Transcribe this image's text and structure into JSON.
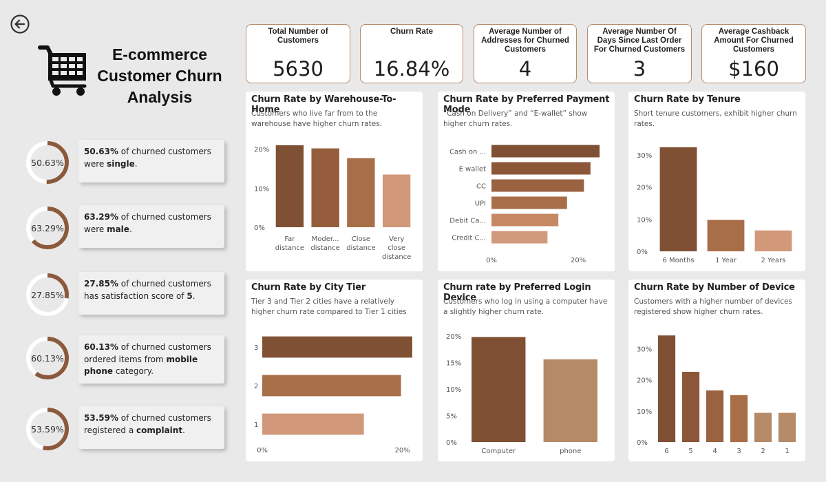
{
  "header": {
    "title_line1": "E-commerce",
    "title_line2": "Customer Churn",
    "title_line3": "Analysis",
    "back_icon": "arrow-left-circle-icon",
    "logo_icon": "shopping-cart-icon"
  },
  "kpis": [
    {
      "label": "Total Number of Customers",
      "value": "5630"
    },
    {
      "label": "Churn Rate",
      "value": "16.84%"
    },
    {
      "label": "Average Number of Addresses for Churned Customers",
      "value": "4"
    },
    {
      "label": "Average Number Of Days Since Last Order For Churned Customers",
      "value": "3"
    },
    {
      "label": "Average Cashback Amount For Churned Customers",
      "value": "$160"
    }
  ],
  "stats": [
    {
      "ring": "50.63%",
      "pct": 50.63,
      "lead": "50.63%",
      "text": " of churned customers were ",
      "bold": "single",
      "tail": "."
    },
    {
      "ring": "63.29%",
      "pct": 63.29,
      "lead": "63.29%",
      "text": " of churned customers were ",
      "bold": "male",
      "tail": "."
    },
    {
      "ring": "27.85%",
      "pct": 27.85,
      "lead": "27.85%",
      "text": " of churned customers has satisfaction score of ",
      "bold": "5",
      "tail": "."
    },
    {
      "ring": "60.13%",
      "pct": 60.13,
      "lead": "60.13%",
      "text": " of churned customers ordered items from ",
      "bold": "mobile phone",
      "tail": " category."
    },
    {
      "ring": "53.59%",
      "pct": 53.59,
      "lead": "53.59%",
      "text": " of churned customers registered a ",
      "bold": "complaint",
      "tail": "."
    }
  ],
  "colors": {
    "ring": "#8b5a3c",
    "ring_track": "#ffffff",
    "dark": "#7f5034",
    "mid": "#9a6240",
    "light": "#d29a7c"
  },
  "chart_data": [
    {
      "id": "warehouse",
      "type": "bar",
      "orientation": "vertical",
      "title": "Churn Rate by Warehouse-To-Home",
      "subtitle": "Customers who live far from to the warehouse have higher churn rates.",
      "categories": [
        "Far distance",
        "Moder... distance",
        "Close distance",
        "Very close distance"
      ],
      "values": [
        21,
        20.2,
        17.7,
        13.5
      ],
      "ticks": [
        "0%",
        "10%",
        "20%"
      ],
      "tick_values": [
        0,
        10,
        20
      ],
      "ylim": [
        0,
        21
      ],
      "colors": [
        "#7f5034",
        "#955d3d",
        "#a86e48",
        "#d2987a"
      ]
    },
    {
      "id": "payment",
      "type": "bar",
      "orientation": "horizontal",
      "title": "Churn Rate by Preferred Payment Mode",
      "subtitle": "“Cash on Delivery” and “E-wallet” show higher churn rates.",
      "categories": [
        "Cash on ...",
        "E wallet",
        "CC",
        "UPI",
        "Debit Ca...",
        "Credit C..."
      ],
      "values": [
        24.9,
        22.8,
        21.3,
        17.4,
        15.4,
        12.9
      ],
      "ticks": [
        "0%",
        "20%"
      ],
      "tick_values": [
        0,
        20
      ],
      "xlim": [
        0,
        26
      ],
      "colors": [
        "#7f5034",
        "#8c5638",
        "#9a6240",
        "#a86e48",
        "#c58863",
        "#d29a7c"
      ]
    },
    {
      "id": "tenure",
      "type": "bar",
      "orientation": "vertical",
      "title": "Churn Rate by Tenure",
      "subtitle": "Short tenure customers, exhibit higher churn rates.",
      "categories": [
        "6 Months",
        "1 Year",
        "2 Years"
      ],
      "values": [
        32.4,
        9.8,
        6.5
      ],
      "ticks": [
        "0%",
        "10%",
        "20%",
        "30%"
      ],
      "tick_values": [
        0,
        10,
        20,
        30
      ],
      "ylim": [
        0,
        33
      ],
      "colors": [
        "#7f5034",
        "#a86e48",
        "#d2987a"
      ]
    },
    {
      "id": "city",
      "type": "bar",
      "orientation": "horizontal",
      "title": "Churn Rate by City Tier",
      "subtitle": "Tier 3 and Tier 2 cities have a relatively higher churn rate compared to Tier 1 cities",
      "categories": [
        "3",
        "2",
        "1"
      ],
      "values": [
        21.4,
        19.8,
        14.5
      ],
      "ticks": [
        "0%",
        "20%"
      ],
      "tick_values": [
        0,
        20
      ],
      "xlim": [
        0,
        22
      ],
      "colors": [
        "#7f5034",
        "#a86e48",
        "#d2987a"
      ]
    },
    {
      "id": "login",
      "type": "bar",
      "orientation": "vertical",
      "title": "Churn rate by Preferred Login Device",
      "subtitle": "Customers who log in using a computer have a slightly higher churn rate.",
      "categories": [
        "Computer",
        "phone"
      ],
      "values": [
        19.8,
        15.6
      ],
      "ticks": [
        "0%",
        "5%",
        "10%",
        "15%",
        "20%"
      ],
      "tick_values": [
        0,
        5,
        10,
        15,
        20
      ],
      "ylim": [
        0,
        20.5
      ],
      "colors": [
        "#7f5034",
        "#b58a68"
      ]
    },
    {
      "id": "devices",
      "type": "bar",
      "orientation": "vertical",
      "title": "Churn Rate by Number of Device",
      "subtitle": "Customers with a higher number of devices registered show higher churn rates.",
      "categories": [
        "6",
        "5",
        "4",
        "3",
        "2",
        "1"
      ],
      "values": [
        34.3,
        22.6,
        16.6,
        15.1,
        9.4,
        9.4
      ],
      "ticks": [
        "0%",
        "10%",
        "20%",
        "30%"
      ],
      "tick_values": [
        0,
        10,
        20,
        30
      ],
      "ylim": [
        0,
        35
      ],
      "colors": [
        "#7f5034",
        "#8c5638",
        "#9a6240",
        "#a86e48",
        "#b58a68",
        "#b58a68"
      ]
    }
  ]
}
